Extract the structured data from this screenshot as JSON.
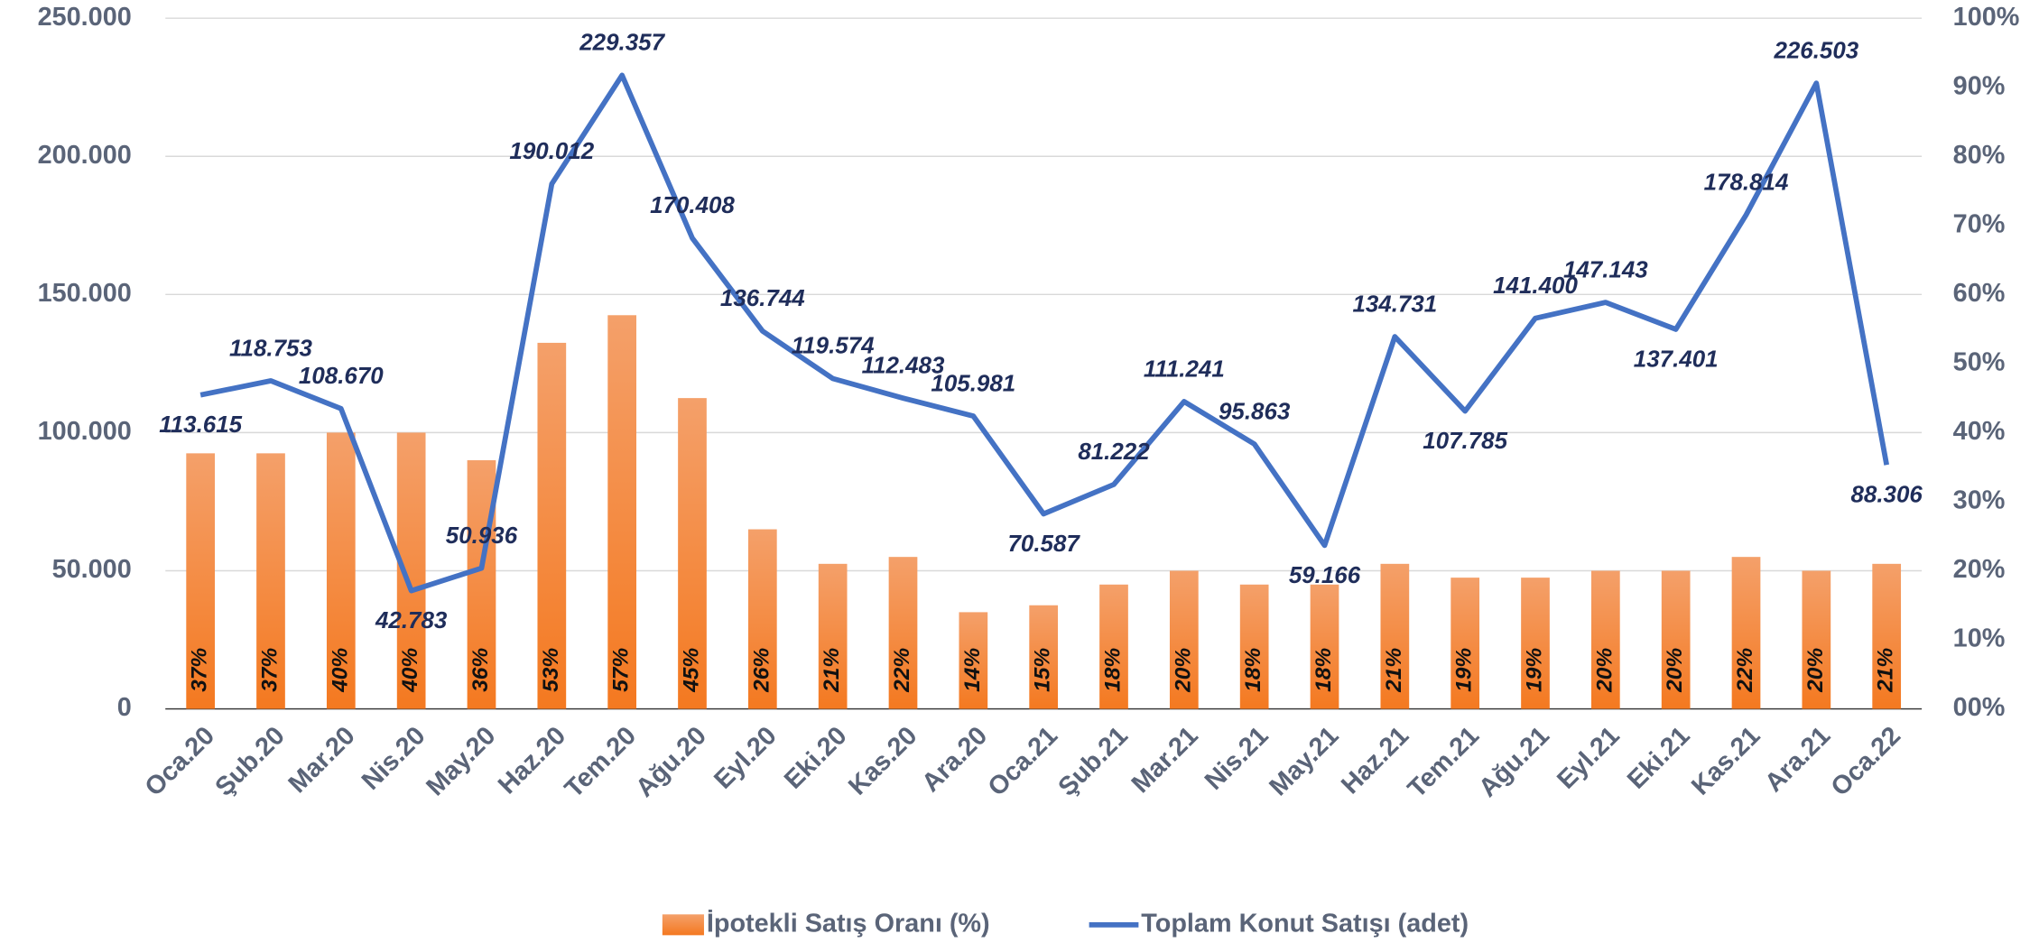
{
  "chart_data": {
    "type": "bar_line",
    "categories": [
      "Oca.20",
      "Şub.20",
      "Mar.20",
      "Nis.20",
      "May.20",
      "Haz.20",
      "Tem.20",
      "Ağu.20",
      "Eyl.20",
      "Eki.20",
      "Kas.20",
      "Ara.20",
      "Oca.21",
      "Şub.21",
      "Mar.21",
      "Nis.21",
      "May.21",
      "Haz.21",
      "Tem.21",
      "Ağu.21",
      "Eyl.21",
      "Eki.21",
      "Kas.21",
      "Ara.21",
      "Oca.22"
    ],
    "series": [
      {
        "name": "İpotekli Satış Oranı (%)",
        "color": "#f47920",
        "axis": "y2",
        "values": [
          37,
          37,
          40,
          40,
          36,
          53,
          57,
          45,
          26,
          21,
          22,
          14,
          15,
          18,
          20,
          18,
          18,
          21,
          19,
          19,
          20,
          20,
          22,
          20,
          21
        ],
        "value_labels": [
          "37%",
          "37%",
          "40%",
          "40%",
          "36%",
          "53%",
          "57%",
          "45%",
          "26%",
          "21%",
          "22%",
          "14%",
          "15%",
          "18%",
          "20%",
          "18%",
          "18%",
          "21%",
          "19%",
          "19%",
          "20%",
          "20%",
          "22%",
          "20%",
          "21%"
        ]
      },
      {
        "name": "Toplam Konut Satışı (adet)",
        "color": "#4472c4",
        "values": [
          113615,
          118753,
          108670,
          42783,
          50936,
          190012,
          229357,
          170408,
          136744,
          119574,
          112483,
          105981,
          70587,
          81222,
          111241,
          95863,
          59166,
          134731,
          107785,
          141400,
          147143,
          137401,
          178814,
          226503,
          88306
        ],
        "value_labels": [
          "113.615",
          "118.753",
          "108.670",
          "42.783",
          "50.936",
          "190.012",
          "229.357",
          "170.408",
          "136.744",
          "119.574",
          "112.483",
          "105.981",
          "70.587",
          "81.222",
          "111.241",
          "95.863",
          "59.166",
          "134.731",
          "107.785",
          "141.400",
          "147.143",
          "137.401",
          "178.814",
          "226.503",
          "88.306"
        ]
      }
    ],
    "ylim": [
      0,
      250000
    ],
    "yticks": [
      0,
      {
        "value": 50000,
        "label": "50.000"
      },
      {
        "value": 100000,
        "label": "100.000"
      },
      {
        "value": 150000,
        "label": "150.000"
      },
      {
        "value": 200000,
        "label": "200.000"
      },
      {
        "value": 250000,
        "label": "250.000"
      }
    ],
    "y2lim": [
      0,
      100
    ],
    "y2ticks": [
      {
        "value": 0,
        "label": "00%"
      },
      {
        "value": 10,
        "label": "10%"
      },
      {
        "value": 20,
        "label": "20%"
      },
      {
        "value": 30,
        "label": "30%"
      },
      {
        "value": 40,
        "label": "40%"
      },
      {
        "value": 50,
        "label": "50%"
      },
      {
        "value": 60,
        "label": "60%"
      },
      {
        "value": 70,
        "label": "70%"
      },
      {
        "value": 80,
        "label": "80%"
      },
      {
        "value": 90,
        "label": "90%"
      },
      {
        "value": 100,
        "label": "100%"
      }
    ],
    "grid": true,
    "legend": "bottom"
  }
}
